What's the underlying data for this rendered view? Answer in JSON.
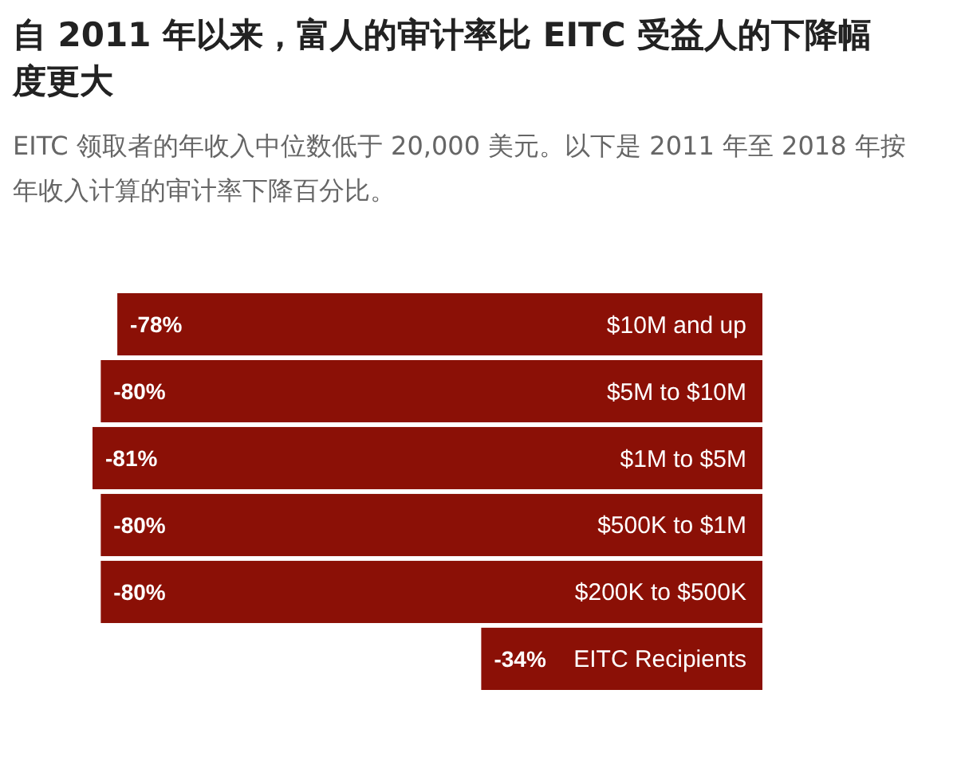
{
  "chart_data": {
    "type": "bar",
    "orientation": "horizontal",
    "title": "自 2011 年以来，富人的审计率比 EITC 受益人的下降幅度更大",
    "subtitle": "EITC 领取者的年收入中位数低于 20,000 美元。以下是 2011 年至 2018 年按年收入计算的审计率下降百分比。",
    "categories": [
      "$10M and up",
      "$5M to $10M",
      "$1M to $5M",
      "$500K to $1M",
      "$200K to $500K",
      "EITC Recipients"
    ],
    "values": [
      -78,
      -80,
      -81,
      -80,
      -80,
      -34
    ],
    "value_labels": [
      "-78%",
      "-80%",
      "-81%",
      "-80%",
      "-80%",
      "-34%"
    ],
    "color": "#8b1006"
  }
}
